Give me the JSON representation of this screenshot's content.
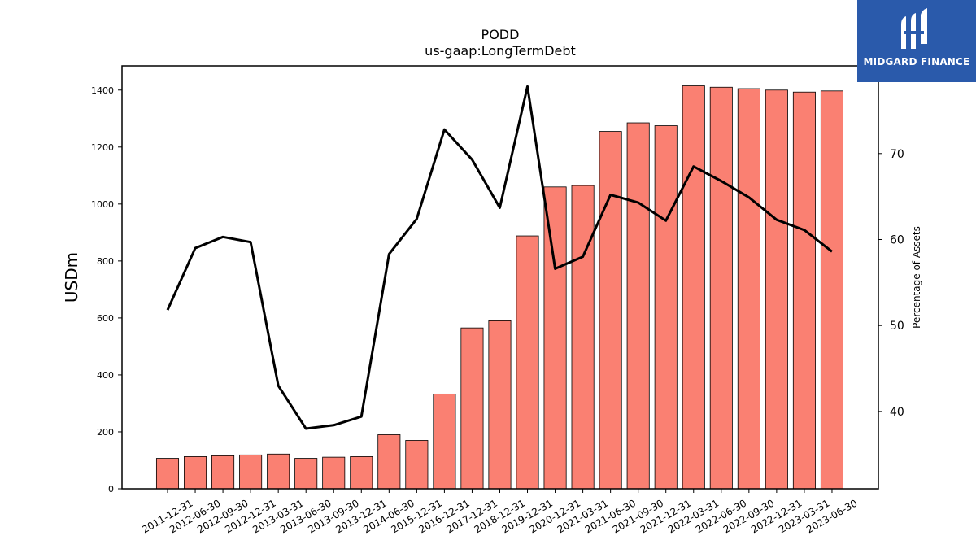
{
  "title_line1": "PODD",
  "title_line2": "us-gaap:LongTermDebt",
  "brand": {
    "name": "MIDGARD FINANCE",
    "color": "#2a5aab"
  },
  "chart_data": {
    "type": "bar",
    "categories": [
      "2011-12-31",
      "2012-06-30",
      "2012-09-30",
      "2012-12-31",
      "2013-03-31",
      "2013-06-30",
      "2013-09-30",
      "2013-12-31",
      "2014-06-30",
      "2015-12-31",
      "2016-12-31",
      "2017-12-31",
      "2018-12-31",
      "2019-12-31",
      "2020-12-31",
      "2021-03-31",
      "2021-06-30",
      "2021-09-30",
      "2021-12-31",
      "2022-03-31",
      "2022-06-30",
      "2022-09-30",
      "2022-12-31",
      "2023-03-31",
      "2023-06-30"
    ],
    "series": [
      {
        "type": "bar",
        "color": "#fa8072",
        "values": [
          107,
          113,
          116,
          119,
          122,
          107,
          111,
          113,
          190,
          170,
          333,
          565,
          590,
          888,
          1060,
          1065,
          1255,
          1285,
          1275,
          1415,
          1410,
          1405,
          1400,
          1393,
          1397
        ]
      },
      {
        "type": "line",
        "axis": "right",
        "color": "#000000",
        "values": [
          51.8,
          59.0,
          60.3,
          59.7,
          43.0,
          38.0,
          38.4,
          39.4,
          58.3,
          62.4,
          72.8,
          69.3,
          63.7,
          77.8,
          56.6,
          58.0,
          65.2,
          64.3,
          62.2,
          68.5,
          66.8,
          64.9,
          62.3,
          61.1,
          58.6
        ]
      }
    ],
    "ylabel": "USDm",
    "ylabel_right": "Percentage of Assets",
    "ylim": [
      0,
      1485
    ],
    "ylim_right": [
      31,
      80.2
    ],
    "yticks": [
      0,
      200,
      400,
      600,
      800,
      1000,
      1200,
      1400
    ],
    "yticks_right": [
      40,
      50,
      60,
      70
    ],
    "grid": false
  }
}
